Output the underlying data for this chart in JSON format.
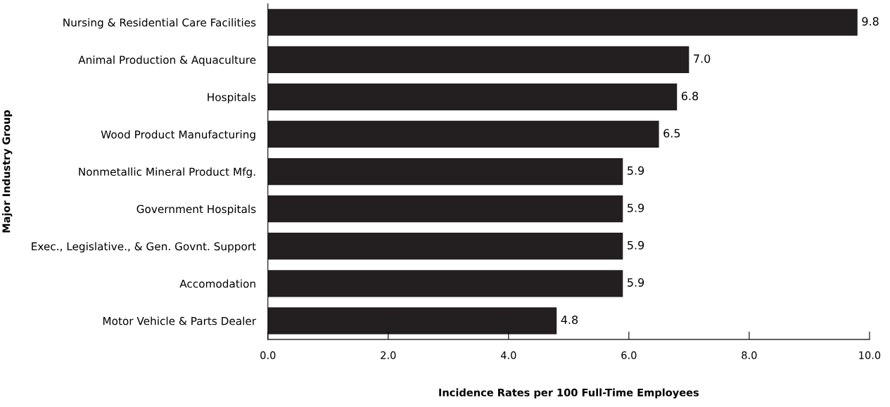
{
  "chart_data": {
    "type": "bar",
    "orientation": "horizontal",
    "xlabel": "Incidence Rates per 100 Full-Time Employees",
    "ylabel": "Major Industry Group",
    "categories": [
      "Nursing & Residential Care Facilities",
      "Animal Production & Aquaculture",
      "Hospitals",
      "Wood Product Manufacturing",
      "Nonmetallic Mineral Product Mfg.",
      "Government Hospitals",
      "Exec., Legislative., & Gen. Govnt. Support",
      "Accomodation",
      "Motor Vehicle & Parts Dealer"
    ],
    "values": [
      9.8,
      7.0,
      6.8,
      6.5,
      5.9,
      5.9,
      5.9,
      5.9,
      4.8
    ],
    "value_labels": [
      "9.8",
      "7.0",
      "6.8",
      "6.5",
      "5.9",
      "5.9",
      "5.9",
      "5.9",
      "4.8"
    ],
    "color": "#231f20",
    "xlim": [
      0,
      10
    ],
    "xticks": [
      {
        "value": 0,
        "label": "0.0"
      },
      {
        "value": 2,
        "label": "2.0"
      },
      {
        "value": 4,
        "label": "4.0"
      },
      {
        "value": 6,
        "label": "6.0"
      },
      {
        "value": 8,
        "label": "8.0"
      },
      {
        "value": 10,
        "label": "10.0"
      }
    ],
    "grid": false
  }
}
